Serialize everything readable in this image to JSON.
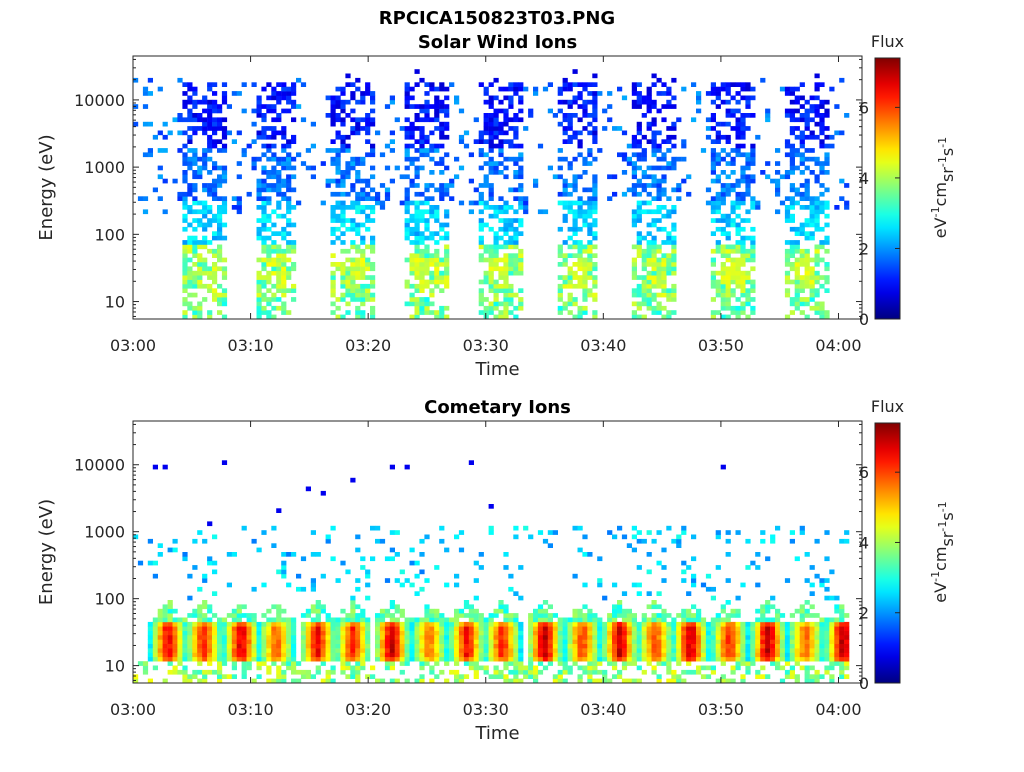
{
  "figure": {
    "title": "RPCICA150823T03.PNG"
  },
  "chart_data": [
    {
      "type": "heatmap",
      "title": "Solar Wind Ions",
      "xlabel": "Time",
      "ylabel": "Energy (eV)",
      "x_ticks": [
        "03:00",
        "03:10",
        "03:20",
        "03:30",
        "03:40",
        "03:50",
        "04:00"
      ],
      "xlim_minutes": [
        0,
        62
      ],
      "y_scale": "log",
      "y_ticks": [
        "10",
        "100",
        "1000",
        "10000"
      ],
      "ylim": [
        5.5,
        45000
      ],
      "colorbar": {
        "title": "Flux",
        "label": "eV-1cm-2sr-1s-1",
        "ticks": [
          "0",
          "2",
          "4",
          "6"
        ],
        "range": [
          0,
          7.4
        ]
      },
      "colormap": "jet",
      "bursts": [
        {
          "center_min": 6.0,
          "emax": 10000
        },
        {
          "center_min": 12.0,
          "emax": 10000
        },
        {
          "center_min": 18.5,
          "emax": 10000
        },
        {
          "center_min": 24.8,
          "emax": 10000
        },
        {
          "center_min": 31.0,
          "emax": 10000
        },
        {
          "center_min": 37.5,
          "emax": 10000
        },
        {
          "center_min": 44.2,
          "emax": 10000
        },
        {
          "center_min": 50.8,
          "emax": 10000
        },
        {
          "center_min": 57.0,
          "emax": 10000
        }
      ],
      "core_flux_max": 4.5,
      "core_energy_range": [
        10,
        60
      ]
    },
    {
      "type": "heatmap",
      "title": "Cometary Ions",
      "xlabel": "Time",
      "ylabel": "Energy (eV)",
      "x_ticks": [
        "03:00",
        "03:10",
        "03:20",
        "03:30",
        "03:40",
        "03:50",
        "04:00"
      ],
      "xlim_minutes": [
        0,
        62
      ],
      "y_scale": "log",
      "y_ticks": [
        "10",
        "100",
        "1000",
        "10000"
      ],
      "ylim": [
        5.5,
        45000
      ],
      "colorbar": {
        "title": "Flux",
        "label": "eV-1cm-2sr-1s-1",
        "ticks": [
          "0",
          "2",
          "4",
          "6"
        ],
        "range": [
          0,
          7.4
        ]
      },
      "colormap": "jet",
      "bursts": [
        {
          "center_min": 2.8,
          "peak_flux": 6.6
        },
        {
          "center_min": 5.8,
          "peak_flux": 6.3
        },
        {
          "center_min": 9.0,
          "peak_flux": 6.8
        },
        {
          "center_min": 12.0,
          "peak_flux": 5.8
        },
        {
          "center_min": 15.5,
          "peak_flux": 6.6
        },
        {
          "center_min": 18.5,
          "peak_flux": 6.3
        },
        {
          "center_min": 21.8,
          "peak_flux": 6.9
        },
        {
          "center_min": 25.0,
          "peak_flux": 5.6
        },
        {
          "center_min": 28.2,
          "peak_flux": 6.5
        },
        {
          "center_min": 31.2,
          "peak_flux": 6.3
        },
        {
          "center_min": 34.8,
          "peak_flux": 7.0
        },
        {
          "center_min": 38.0,
          "peak_flux": 6.0
        },
        {
          "center_min": 41.2,
          "peak_flux": 6.9
        },
        {
          "center_min": 44.2,
          "peak_flux": 6.0
        },
        {
          "center_min": 47.2,
          "peak_flux": 6.9
        },
        {
          "center_min": 50.5,
          "peak_flux": 6.2
        },
        {
          "center_min": 53.8,
          "peak_flux": 7.0
        },
        {
          "center_min": 57.0,
          "peak_flux": 5.8
        },
        {
          "center_min": 60.2,
          "peak_flux": 7.1
        }
      ],
      "core_energy_range": [
        12,
        45
      ]
    }
  ]
}
